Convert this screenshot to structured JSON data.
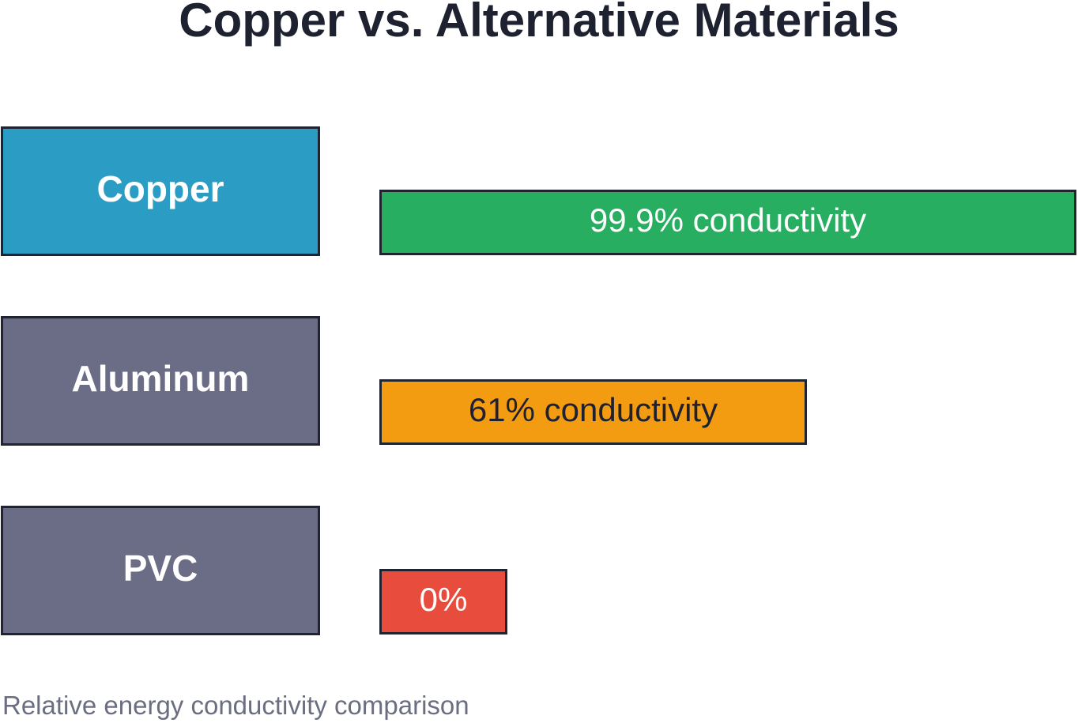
{
  "chart_data": {
    "type": "bar",
    "orientation": "horizontal",
    "title": "Copper vs. Alternative Materials",
    "caption": "Relative energy conductivity comparison",
    "categories": [
      "Copper",
      "Aluminum",
      "PVC"
    ],
    "values": [
      99.9,
      61,
      0
    ],
    "data_labels": [
      "99.9% conductivity",
      "61% conductivity",
      "0%"
    ],
    "xlim": [
      0,
      100
    ],
    "grid": false,
    "category_box_colors": [
      "#2b9dc5",
      "#6a6d85",
      "#6a6d85"
    ],
    "bar_colors": [
      "#27ae60",
      "#f39c12",
      "#e74c3c"
    ],
    "label_colors": [
      "#ffffff",
      "#1e2130",
      "#ffffff"
    ]
  }
}
